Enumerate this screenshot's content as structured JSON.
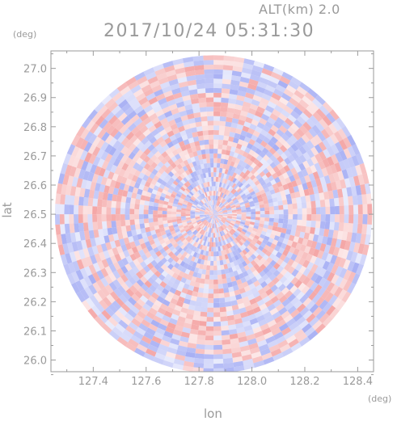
{
  "header": {
    "alt_label": "ALT(km) 2.0",
    "datetime": "2017/10/24 05:31:30"
  },
  "chart_data": {
    "type": "heatmap",
    "title": "2017/10/24 05:31:30",
    "subtitle": "ALT(km) 2.0",
    "xlabel": "lon",
    "ylabel": "lat",
    "x_unit": "(deg)",
    "y_unit": "(deg)",
    "xlim": [
      127.24,
      128.46
    ],
    "ylim": [
      25.96,
      27.06
    ],
    "x_ticks": [
      127.4,
      127.6,
      127.8,
      128.0,
      128.2,
      128.4
    ],
    "y_ticks": [
      26.0,
      26.1,
      26.2,
      26.3,
      26.4,
      26.5,
      26.6,
      26.7,
      26.8,
      26.9,
      27.0
    ],
    "x_tick_labels": [
      "127.4",
      "127.6",
      "127.8",
      "128.0",
      "128.2",
      "128.4"
    ],
    "y_tick_labels": [
      "26.0",
      "26.1",
      "26.2",
      "26.3",
      "26.4",
      "26.5",
      "26.6",
      "26.7",
      "26.8",
      "26.9",
      "27.0"
    ],
    "radar_center": {
      "lon": 127.855,
      "lat": 26.5
    },
    "radar_range_deg": {
      "lon": 0.6,
      "lat": 0.545
    },
    "colormap": {
      "positive": "#f4a6a6",
      "negative": "#a8b0f4",
      "zero": "#ffffff"
    },
    "grid": false
  }
}
